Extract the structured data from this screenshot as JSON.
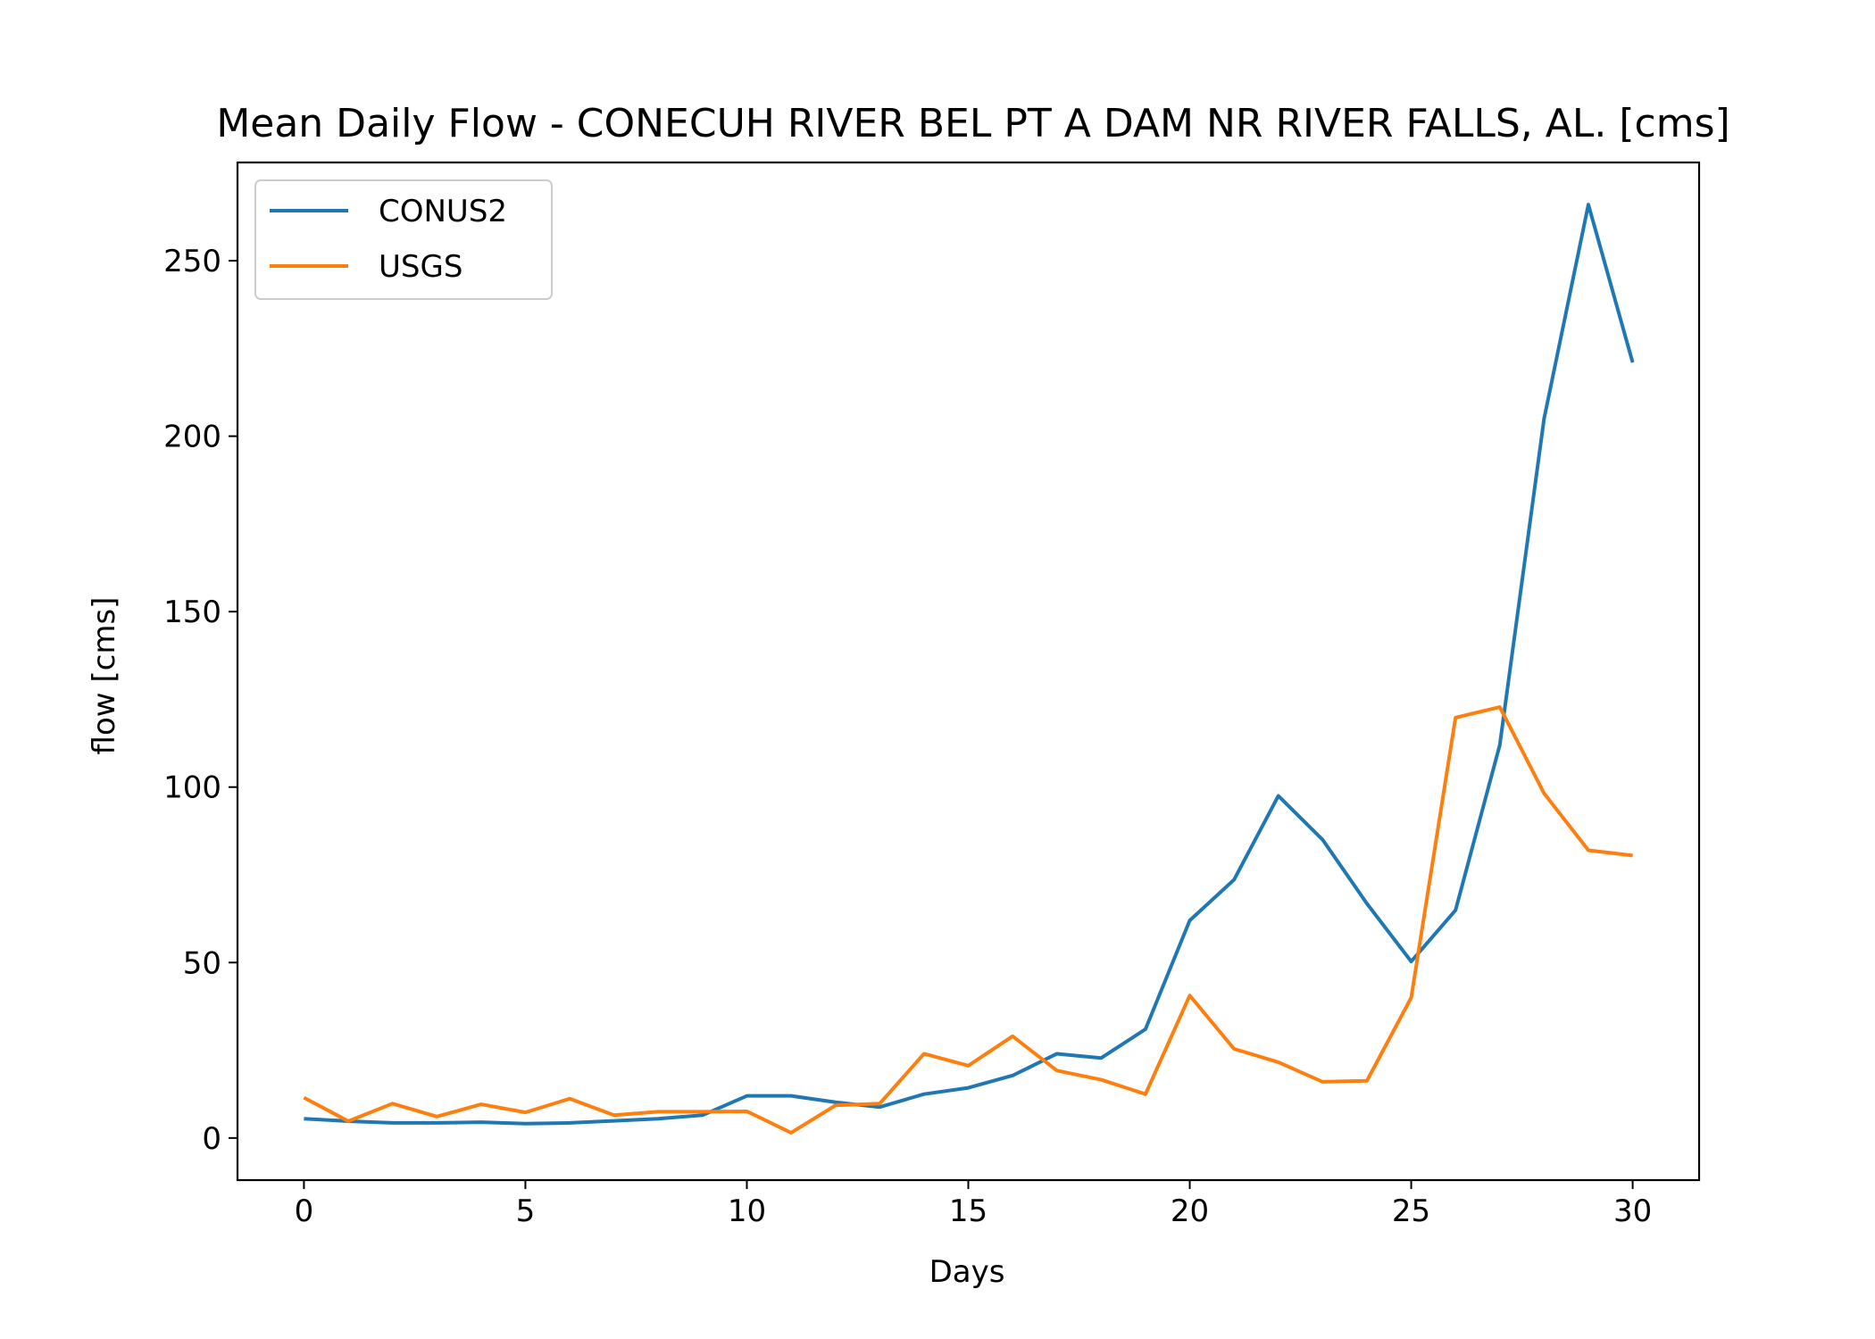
{
  "chart_data": {
    "type": "line",
    "title": "Mean Daily Flow - CONECUH RIVER BEL PT A DAM NR RIVER FALLS, AL. [cms]",
    "xlabel": "Days",
    "ylabel": "flow [cms]",
    "xlim": [
      -1.5,
      31.5
    ],
    "ylim": [
      -12,
      278
    ],
    "xticks": [
      0,
      5,
      10,
      15,
      20,
      25,
      30
    ],
    "yticks": [
      0,
      50,
      100,
      150,
      200,
      250
    ],
    "grid": false,
    "legend_position": "top-left",
    "x": [
      0,
      1,
      2,
      3,
      4,
      5,
      6,
      7,
      8,
      9,
      10,
      11,
      12,
      13,
      14,
      15,
      16,
      17,
      18,
      19,
      20,
      21,
      22,
      23,
      24,
      25,
      26,
      27,
      28,
      29,
      30
    ],
    "series": [
      {
        "name": "CONUS2",
        "color": "#1f77b4",
        "values": [
          5.5,
          4.8,
          4.3,
          4.3,
          4.5,
          4.1,
          4.3,
          4.9,
          5.5,
          6.5,
          12,
          12,
          10.2,
          8.8,
          12.5,
          14.3,
          17.8,
          24,
          22.8,
          31,
          62,
          73.6,
          97.5,
          85,
          66.8,
          50.3,
          64.9,
          112,
          205,
          266,
          221
        ]
      },
      {
        "name": "USGS",
        "color": "#ff7f0e",
        "values": [
          11.5,
          4.8,
          9.8,
          6.1,
          9.6,
          7.3,
          11.2,
          6.5,
          7.5,
          7.5,
          7.6,
          1.5,
          9.3,
          9.8,
          24,
          20.6,
          29,
          19.2,
          16.6,
          12.5,
          40.6,
          25.4,
          21.6,
          16,
          16.3,
          40,
          119.8,
          122.8,
          98.2,
          82,
          80.5
        ]
      }
    ]
  }
}
